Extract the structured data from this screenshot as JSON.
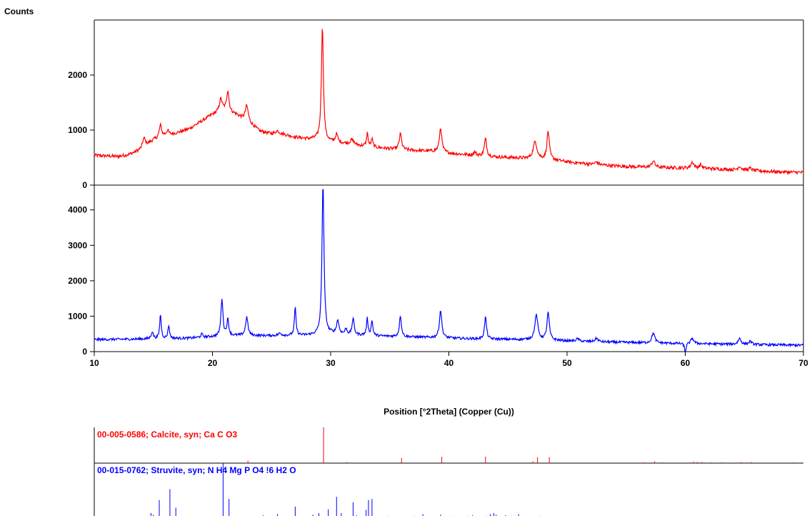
{
  "chart_data": [
    {
      "type": "line",
      "panel": "upper",
      "ylabel": "Counts",
      "ylim": [
        0,
        3000
      ],
      "yticks": [
        0,
        1000,
        2000
      ],
      "xlim": [
        10,
        70
      ],
      "color": "#ff0000",
      "baseline_points": [
        [
          10,
          540
        ],
        [
          12,
          520
        ],
        [
          13,
          560
        ],
        [
          14,
          650
        ],
        [
          15,
          820
        ],
        [
          16,
          900
        ],
        [
          17,
          950
        ],
        [
          18,
          1020
        ],
        [
          19,
          1150
        ],
        [
          20,
          1280
        ],
        [
          21,
          1350
        ],
        [
          22,
          1280
        ],
        [
          23,
          1150
        ],
        [
          24,
          980
        ],
        [
          25,
          930
        ],
        [
          26,
          920
        ],
        [
          27,
          870
        ],
        [
          28,
          840
        ],
        [
          29,
          830
        ],
        [
          30,
          780
        ],
        [
          31,
          760
        ],
        [
          32,
          730
        ],
        [
          33,
          700
        ],
        [
          34,
          680
        ],
        [
          35,
          660
        ],
        [
          36,
          640
        ],
        [
          37,
          630
        ],
        [
          38,
          620
        ],
        [
          39,
          610
        ],
        [
          40,
          580
        ],
        [
          41,
          560
        ],
        [
          42,
          540
        ],
        [
          43,
          520
        ],
        [
          44,
          510
        ],
        [
          45,
          500
        ],
        [
          46,
          490
        ],
        [
          47,
          470
        ],
        [
          48,
          460
        ],
        [
          49,
          450
        ],
        [
          50,
          420
        ],
        [
          52,
          380
        ],
        [
          54,
          350
        ],
        [
          56,
          330
        ],
        [
          58,
          320
        ],
        [
          60,
          310
        ],
        [
          62,
          300
        ],
        [
          64,
          280
        ],
        [
          66,
          260
        ],
        [
          68,
          240
        ],
        [
          70,
          230
        ]
      ],
      "peaks": [
        [
          14.2,
          170,
          0.15
        ],
        [
          15.6,
          220,
          0.12
        ],
        [
          16.2,
          80,
          0.12
        ],
        [
          20.7,
          230,
          0.15
        ],
        [
          21.3,
          380,
          0.12
        ],
        [
          22.9,
          280,
          0.15
        ],
        [
          25.5,
          60,
          0.2
        ],
        [
          29.3,
          2080,
          0.1
        ],
        [
          30.5,
          150,
          0.12
        ],
        [
          31.8,
          80,
          0.2
        ],
        [
          33.1,
          250,
          0.08
        ],
        [
          33.5,
          150,
          0.08
        ],
        [
          35.9,
          290,
          0.12
        ],
        [
          39.3,
          440,
          0.12
        ],
        [
          42.2,
          60,
          0.15
        ],
        [
          43.1,
          320,
          0.12
        ],
        [
          47.3,
          320,
          0.2
        ],
        [
          48.4,
          520,
          0.12
        ],
        [
          52.5,
          50,
          0.15
        ],
        [
          57.3,
          120,
          0.15
        ],
        [
          60.6,
          110,
          0.15
        ],
        [
          61.3,
          60,
          0.15
        ],
        [
          64.6,
          70,
          0.15
        ],
        [
          65.5,
          40,
          0.15
        ]
      ],
      "noise": 30
    },
    {
      "type": "line",
      "panel": "lower",
      "ylim": [
        0,
        4700
      ],
      "yticks": [
        0,
        1000,
        2000,
        3000,
        4000
      ],
      "xlim": [
        10,
        70
      ],
      "xticks": [
        10,
        20,
        30,
        40,
        50,
        60,
        70
      ],
      "xlabel": "Position [°2Theta] (Copper (Cu))",
      "color": "#0000ff",
      "baseline_points": [
        [
          10,
          340
        ],
        [
          15,
          360
        ],
        [
          18,
          380
        ],
        [
          20,
          420
        ],
        [
          22,
          450
        ],
        [
          25,
          450
        ],
        [
          28,
          460
        ],
        [
          29,
          470
        ],
        [
          30,
          500
        ],
        [
          32,
          470
        ],
        [
          34,
          440
        ],
        [
          36,
          420
        ],
        [
          38,
          400
        ],
        [
          40,
          380
        ],
        [
          42,
          360
        ],
        [
          44,
          350
        ],
        [
          46,
          340
        ],
        [
          48,
          330
        ],
        [
          50,
          300
        ],
        [
          52,
          280
        ],
        [
          55,
          260
        ],
        [
          58,
          240
        ],
        [
          60,
          230
        ],
        [
          62,
          220
        ],
        [
          65,
          200
        ],
        [
          70,
          180
        ]
      ],
      "peaks": [
        [
          14.9,
          200,
          0.1
        ],
        [
          15.6,
          680,
          0.08
        ],
        [
          16.3,
          370,
          0.08
        ],
        [
          19.1,
          90,
          0.1
        ],
        [
          20.8,
          1060,
          0.1
        ],
        [
          21.3,
          450,
          0.1
        ],
        [
          22.9,
          520,
          0.12
        ],
        [
          25.7,
          60,
          0.15
        ],
        [
          27.0,
          780,
          0.08
        ],
        [
          29.35,
          4280,
          0.1
        ],
        [
          30.6,
          380,
          0.12
        ],
        [
          31.3,
          150,
          0.1
        ],
        [
          31.9,
          460,
          0.1
        ],
        [
          33.1,
          470,
          0.08
        ],
        [
          33.5,
          420,
          0.08
        ],
        [
          35.9,
          600,
          0.1
        ],
        [
          39.3,
          780,
          0.12
        ],
        [
          43.1,
          620,
          0.1
        ],
        [
          47.4,
          700,
          0.15
        ],
        [
          48.4,
          770,
          0.12
        ],
        [
          50.9,
          70,
          0.15
        ],
        [
          52.5,
          100,
          0.15
        ],
        [
          57.3,
          280,
          0.15
        ],
        [
          60.0,
          -250,
          0.08
        ],
        [
          60.6,
          150,
          0.15
        ],
        [
          64.6,
          170,
          0.15
        ],
        [
          65.5,
          90,
          0.15
        ]
      ],
      "noise": 35
    },
    {
      "type": "bar",
      "panel": "reference",
      "label": "00-005-0586; Calcite, syn; Ca C O3",
      "color": "#ff0000",
      "xlim": [
        10,
        70
      ],
      "ylim": [
        0,
        100
      ],
      "peaks": [
        [
          23.0,
          7
        ],
        [
          29.4,
          100
        ],
        [
          31.4,
          3
        ],
        [
          36.0,
          14
        ],
        [
          39.4,
          18
        ],
        [
          43.1,
          18
        ],
        [
          47.1,
          5
        ],
        [
          47.5,
          17
        ],
        [
          48.5,
          17
        ],
        [
          56.5,
          2
        ],
        [
          57.4,
          5
        ],
        [
          58.1,
          2
        ],
        [
          60.7,
          4
        ],
        [
          61.0,
          3
        ],
        [
          61.4,
          3
        ],
        [
          62.2,
          2
        ],
        [
          63.1,
          2
        ],
        [
          64.7,
          3
        ],
        [
          65.6,
          3
        ],
        [
          69.2,
          2
        ]
      ]
    },
    {
      "type": "bar",
      "panel": "reference",
      "label": "00-015-0762; Struvite, syn; N H4 Mg P O4 !6 H2 O",
      "color": "#0000ff",
      "xlim": [
        10,
        70
      ],
      "ylim": [
        0,
        100
      ],
      "peaks": [
        [
          14.8,
          8
        ],
        [
          15.0,
          5
        ],
        [
          15.5,
          32
        ],
        [
          16.4,
          52
        ],
        [
          16.9,
          18
        ],
        [
          19.0,
          2
        ],
        [
          20.9,
          100
        ],
        [
          21.4,
          34
        ],
        [
          24.3,
          4
        ],
        [
          25.5,
          6
        ],
        [
          27.0,
          20
        ],
        [
          28.5,
          5
        ],
        [
          29.0,
          8
        ],
        [
          29.8,
          15
        ],
        [
          30.5,
          38
        ],
        [
          30.9,
          8
        ],
        [
          31.9,
          28
        ],
        [
          32.2,
          4
        ],
        [
          33.0,
          14
        ],
        [
          33.2,
          32
        ],
        [
          33.5,
          34
        ],
        [
          34.8,
          3
        ],
        [
          35.7,
          2
        ],
        [
          37.1,
          3
        ],
        [
          37.8,
          6
        ],
        [
          39.3,
          5
        ],
        [
          40.4,
          3
        ],
        [
          41.6,
          3
        ],
        [
          42.0,
          4
        ],
        [
          43.2,
          3
        ],
        [
          43.5,
          6
        ],
        [
          43.8,
          8
        ],
        [
          44.0,
          5
        ],
        [
          44.8,
          4
        ],
        [
          45.3,
          3
        ],
        [
          45.9,
          6
        ],
        [
          47.7,
          3
        ],
        [
          48.5,
          2
        ],
        [
          49.2,
          2
        ]
      ]
    }
  ]
}
